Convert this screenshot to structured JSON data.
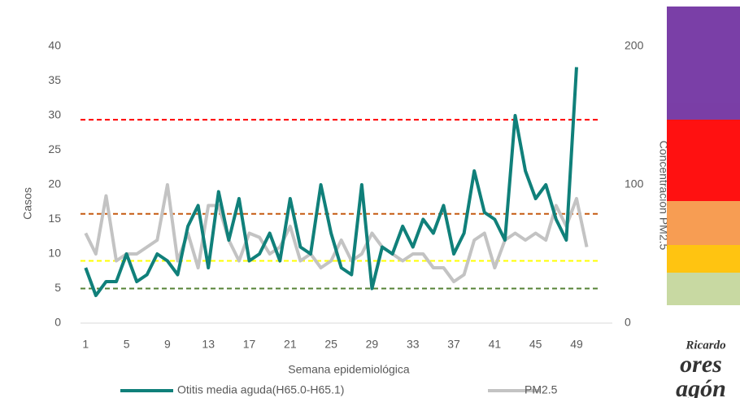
{
  "chart_data": {
    "type": "line",
    "categories": [
      "1",
      null,
      null,
      null,
      "5",
      null,
      null,
      null,
      "9",
      null,
      null,
      null,
      "13",
      null,
      null,
      null,
      "17",
      null,
      null,
      null,
      "21",
      null,
      null,
      null,
      "25",
      null,
      null,
      null,
      "29",
      null,
      null,
      null,
      "33",
      null,
      null,
      null,
      "37",
      null,
      null,
      null,
      "41",
      null,
      null,
      null,
      "45",
      null,
      null,
      null,
      "49",
      null,
      null,
      null
    ],
    "x_label": "Semana epidemiológica",
    "y_label": "Casos",
    "y2_label": "Concentración PM2.5",
    "ylim": [
      0,
      40
    ],
    "yticks": [
      0,
      5,
      10,
      15,
      20,
      25,
      30,
      35,
      40
    ],
    "y2lim": [
      0,
      200
    ],
    "y2ticks": [
      0,
      100,
      200
    ],
    "series": [
      {
        "name": "Otitis media aguda(H65.0-H65.1)",
        "color": "#10807a",
        "values": [
          8,
          4,
          6,
          6,
          10,
          6,
          7,
          10,
          9,
          7,
          14,
          17,
          8,
          19,
          12,
          18,
          9,
          10,
          13,
          9,
          18,
          11,
          10,
          20,
          13,
          8,
          7,
          20,
          5,
          11,
          10,
          14,
          11,
          15,
          13,
          17,
          10,
          13,
          22,
          16,
          15,
          12,
          30,
          22,
          18,
          20,
          15,
          12,
          37,
          null,
          null,
          null
        ]
      },
      {
        "name": "PM2.5",
        "color": "#c3c3c3",
        "axis": "y2",
        "values": [
          65,
          50,
          92,
          45,
          50,
          50,
          55,
          60,
          100,
          45,
          65,
          40,
          85,
          85,
          60,
          45,
          65,
          62,
          50,
          55,
          70,
          45,
          50,
          40,
          45,
          60,
          45,
          50,
          65,
          55,
          50,
          45,
          50,
          50,
          40,
          40,
          30,
          35,
          60,
          65,
          40,
          60,
          65,
          60,
          65,
          60,
          85,
          70,
          90,
          55,
          null,
          null
        ]
      }
    ],
    "reference_lines": [
      {
        "value": 29.4,
        "color": "#ff0000"
      },
      {
        "value": 15.8,
        "color": "#c55a11"
      },
      {
        "value": 9,
        "color": "#ffff00"
      },
      {
        "value": 5,
        "color": "#548235"
      }
    ]
  },
  "logo": {
    "lines": [
      "Ricardo",
      "ores",
      "agón"
    ]
  }
}
